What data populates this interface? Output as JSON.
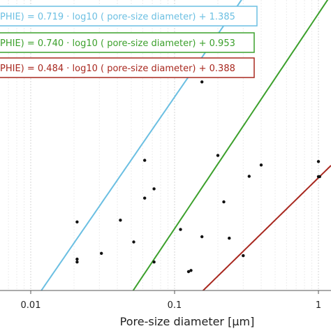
{
  "chart_data": {
    "type": "scatter",
    "title": "",
    "xlabel": "Pore-size diameter [μm]",
    "ylabel": "",
    "xscale": "log",
    "xlim": [
      0.005,
      1.1
    ],
    "ylim": [
      0,
      1.0
    ],
    "grid": true,
    "x_ticks": [
      {
        "value": 0.01,
        "label": "0.01"
      },
      {
        "value": 0.1,
        "label": "0.1"
      },
      {
        "value": 1,
        "label": "1"
      }
    ],
    "curves": [
      {
        "label": "PHIE) = 0.719 · log10 ( pore-size diameter) + 1.385",
        "color": "#6bbfe2",
        "a": 0.719,
        "b": 1.385
      },
      {
        "label": "PHIE) = 0.740 · log10 ( pore-size diameter) + 0.953",
        "color": "#3ca02c",
        "a": 0.74,
        "b": 0.953
      },
      {
        "label": "PHIE) = 0.484 · log10 ( pore-size diameter) + 0.388",
        "color": "#a8281f",
        "a": 0.484,
        "b": 0.388
      }
    ],
    "points": [
      {
        "x": 0.021,
        "y": 0.236
      },
      {
        "x": 0.021,
        "y": 0.108
      },
      {
        "x": 0.021,
        "y": 0.098
      },
      {
        "x": 0.031,
        "y": 0.128
      },
      {
        "x": 0.042,
        "y": 0.242
      },
      {
        "x": 0.052,
        "y": 0.167
      },
      {
        "x": 0.062,
        "y": 0.448
      },
      {
        "x": 0.062,
        "y": 0.318
      },
      {
        "x": 0.072,
        "y": 0.35
      },
      {
        "x": 0.072,
        "y": 0.098
      },
      {
        "x": 0.11,
        "y": 0.21
      },
      {
        "x": 0.125,
        "y": 0.065
      },
      {
        "x": 0.13,
        "y": 0.069
      },
      {
        "x": 0.155,
        "y": 0.185
      },
      {
        "x": 0.155,
        "y": 0.718
      },
      {
        "x": 0.2,
        "y": 0.465
      },
      {
        "x": 0.22,
        "y": 0.305
      },
      {
        "x": 0.24,
        "y": 0.18
      },
      {
        "x": 0.3,
        "y": 0.12
      },
      {
        "x": 0.33,
        "y": 0.393
      },
      {
        "x": 0.4,
        "y": 0.432
      },
      {
        "x": 1.0,
        "y": 0.444
      },
      {
        "x": 1.0,
        "y": 0.392
      },
      {
        "x": 1.02,
        "y": 0.392
      }
    ]
  }
}
